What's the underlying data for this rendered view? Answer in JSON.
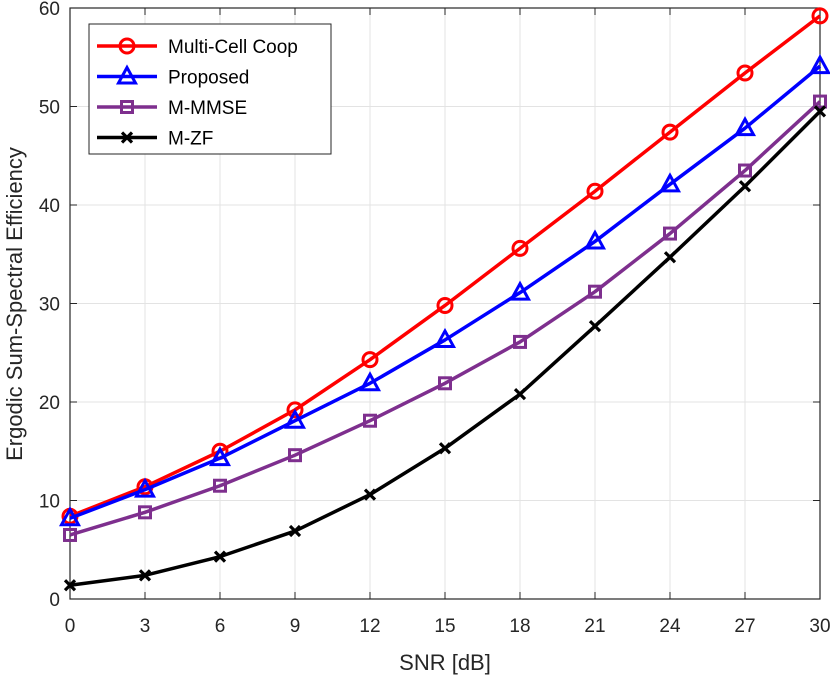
{
  "chart_data": {
    "type": "line",
    "xlabel": "SNR [dB]",
    "ylabel": "Ergodic Sum-Spectral Efficiency",
    "xlim": [
      0,
      30
    ],
    "ylim": [
      0,
      60
    ],
    "xticks": [
      "0",
      "3",
      "6",
      "9",
      "12",
      "15",
      "18",
      "21",
      "24",
      "27",
      "30"
    ],
    "yticks": [
      "0",
      "10",
      "20",
      "30",
      "40",
      "50",
      "60"
    ],
    "grid": true,
    "legend_position": "top-left",
    "x": [
      0,
      3,
      6,
      9,
      12,
      15,
      18,
      21,
      24,
      27,
      30
    ],
    "series": [
      {
        "name": "Multi-Cell Coop",
        "color": "#ff0000",
        "marker": "circle",
        "values": [
          8.4,
          11.4,
          15.0,
          19.2,
          24.3,
          29.8,
          35.6,
          41.4,
          47.4,
          53.4,
          59.2
        ]
      },
      {
        "name": "Proposed",
        "color": "#0000ff",
        "marker": "triangle",
        "values": [
          8.2,
          11.1,
          14.3,
          18.1,
          21.9,
          26.3,
          31.1,
          36.3,
          42.1,
          47.8,
          54.1
        ]
      },
      {
        "name": "M-MMSE",
        "color": "#7e2f8e",
        "marker": "square",
        "values": [
          6.5,
          8.8,
          11.5,
          14.6,
          18.1,
          21.9,
          26.1,
          31.2,
          37.1,
          43.5,
          50.5
        ]
      },
      {
        "name": "M-ZF",
        "color": "#000000",
        "marker": "x",
        "values": [
          1.4,
          2.4,
          4.3,
          6.9,
          10.6,
          15.3,
          20.8,
          27.7,
          34.7,
          41.9,
          49.5
        ]
      }
    ]
  }
}
